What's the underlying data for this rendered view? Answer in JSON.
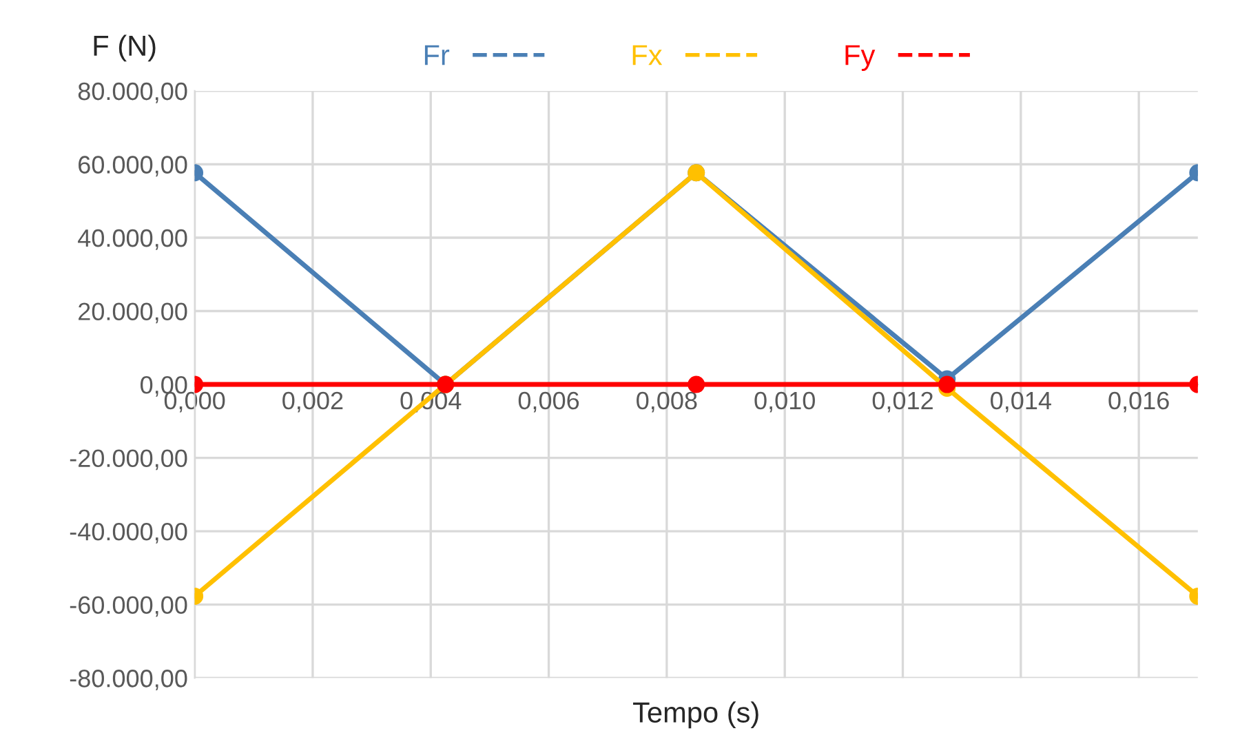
{
  "chart_data": {
    "type": "line",
    "xlabel": "Tempo (s)",
    "ylabel": "F (N)",
    "x": [
      0,
      0.00425,
      0.0085,
      0.01275,
      0.017
    ],
    "series": [
      {
        "name": "Fr",
        "color": "#4a7fb5",
        "values": [
          57700,
          0,
          57700,
          1500,
          57700
        ]
      },
      {
        "name": "Fx",
        "color": "#ffc000",
        "values": [
          -57700,
          0,
          57700,
          -1000,
          -57700
        ]
      },
      {
        "name": "Fy",
        "color": "#ff0000",
        "values": [
          0,
          0,
          0,
          0,
          0
        ]
      }
    ],
    "xlim": [
      0,
      0.017
    ],
    "xticks": [
      {
        "value": 0,
        "label": "0,000"
      },
      {
        "value": 0.002,
        "label": "0,002"
      },
      {
        "value": 0.004,
        "label": "0,004"
      },
      {
        "value": 0.006,
        "label": "0,006"
      },
      {
        "value": 0.008,
        "label": "0,008"
      },
      {
        "value": 0.01,
        "label": "0,010"
      },
      {
        "value": 0.012,
        "label": "0,012"
      },
      {
        "value": 0.014,
        "label": "0,014"
      },
      {
        "value": 0.016,
        "label": "0,016"
      }
    ],
    "ylim": [
      -80000,
      80000
    ],
    "yticks": [
      {
        "value": -80000,
        "label": "-80.000,00"
      },
      {
        "value": -60000,
        "label": "-60.000,00"
      },
      {
        "value": -40000,
        "label": "-40.000,00"
      },
      {
        "value": -20000,
        "label": "-20.000,00"
      },
      {
        "value": 0,
        "label": "0,00"
      },
      {
        "value": 20000,
        "label": "20.000,00"
      },
      {
        "value": 40000,
        "label": "40.000,00"
      },
      {
        "value": 60000,
        "label": "60.000,00"
      },
      {
        "value": 80000,
        "label": "80.000,00"
      }
    ],
    "grid": true,
    "legend": "top",
    "marker": "circle",
    "line_style": "solid"
  }
}
